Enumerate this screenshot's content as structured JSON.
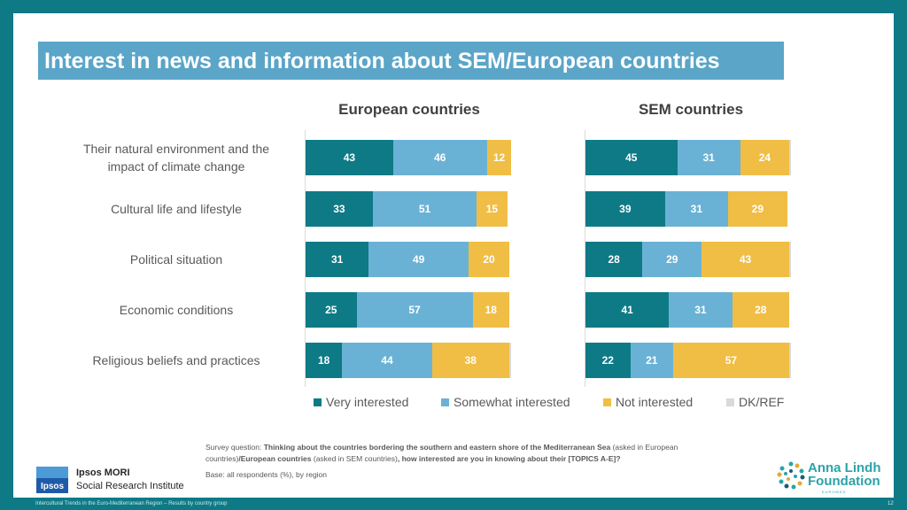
{
  "title": "Interest in news and information about SEM/European countries",
  "colors": {
    "frame": "#0e7a86",
    "title_bar": "#5aa5c8",
    "very": "#0e7a86",
    "somewhat": "#6ab2d5",
    "not": "#f0be45",
    "dk": "#d9d9d9"
  },
  "chart_data": [
    {
      "type": "bar",
      "orientation": "horizontal-stacked",
      "title": "European countries",
      "categories": [
        "Their natural environment and the impact of climate change",
        "Cultural life and lifestyle",
        "Political situation",
        "Economic conditions",
        "Religious beliefs and practices"
      ],
      "series": [
        {
          "name": "Very interested",
          "values": [
            43,
            33,
            31,
            25,
            18
          ]
        },
        {
          "name": "Somewhat interested",
          "values": [
            46,
            51,
            49,
            57,
            44
          ]
        },
        {
          "name": "Not interested",
          "values": [
            12,
            15,
            20,
            18,
            38
          ]
        },
        {
          "name": "DK/REF",
          "values": [
            0,
            0,
            0,
            0,
            1
          ]
        }
      ]
    },
    {
      "type": "bar",
      "orientation": "horizontal-stacked",
      "title": "SEM countries",
      "categories": [
        "Their natural environment and the impact of climate change",
        "Cultural life and lifestyle",
        "Political situation",
        "Economic conditions",
        "Religious beliefs and practices"
      ],
      "series": [
        {
          "name": "Very interested",
          "values": [
            45,
            39,
            28,
            41,
            22
          ]
        },
        {
          "name": "Somewhat interested",
          "values": [
            31,
            31,
            29,
            31,
            21
          ]
        },
        {
          "name": "Not interested",
          "values": [
            24,
            29,
            43,
            28,
            57
          ]
        },
        {
          "name": "DK/REF",
          "values": [
            1,
            0,
            1,
            0,
            1
          ]
        }
      ]
    }
  ],
  "category_lines": [
    [
      "Their natural environment and the",
      "impact of climate change"
    ],
    [
      "Cultural life and lifestyle"
    ],
    [
      "Political situation"
    ],
    [
      "Economic conditions"
    ],
    [
      "Religious beliefs and practices"
    ]
  ],
  "legend": [
    "Very interested",
    "Somewhat interested",
    "Not interested",
    "DK/REF"
  ],
  "survey": {
    "prefix": "Survey question: ",
    "q1": "Thinking about the countries bordering the southern and eastern shore of the Mediterranean Sea",
    "mid1": " (asked in European countries)",
    "q2": "/European countries",
    "mid2": " (asked in SEM countries)",
    "q3": ", how interested are you in knowing about their [TOPICS A-E]?"
  },
  "base": "Base: all respondents (%), by region",
  "ipsos": {
    "logo_text": "Ipsos",
    "name": "Ipsos MORI",
    "sub": "Social Research Institute"
  },
  "alf": {
    "line1": "Anna Lindh",
    "line2": "Foundation",
    "tag": "EUROMED"
  },
  "footer": "Intercultural Trends in the Euro-Mediterranean Region – Results by country group",
  "page": "12"
}
